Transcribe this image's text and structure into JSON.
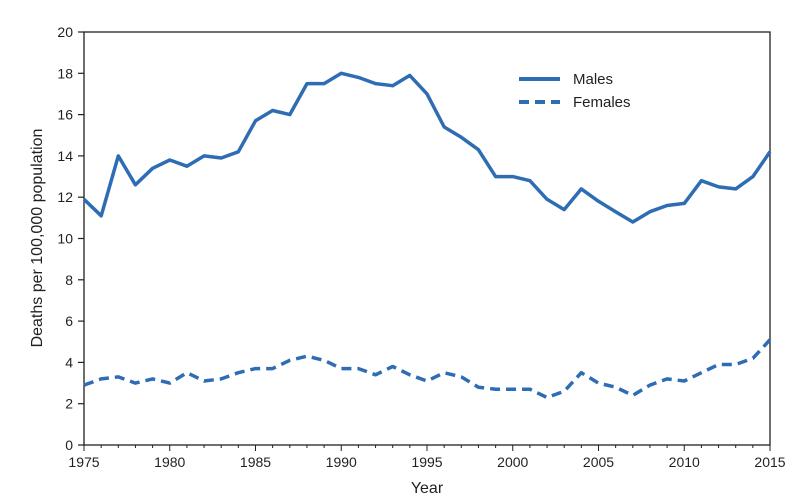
{
  "chart_data": {
    "type": "line",
    "title": "",
    "xlabel": "Year",
    "ylabel": "Deaths per 100,000 population",
    "xlim": [
      1975,
      2015
    ],
    "ylim": [
      0,
      20
    ],
    "x_ticks": [
      1975,
      1980,
      1985,
      1990,
      1995,
      2000,
      2005,
      2010,
      2015
    ],
    "y_ticks": [
      0,
      2,
      4,
      6,
      8,
      10,
      12,
      14,
      16,
      18,
      20
    ],
    "grid": false,
    "legend_position": "top-right",
    "line_color": "#2e6db4",
    "x": [
      1975,
      1976,
      1977,
      1978,
      1979,
      1980,
      1981,
      1982,
      1983,
      1984,
      1985,
      1986,
      1987,
      1988,
      1989,
      1990,
      1991,
      1992,
      1993,
      1994,
      1995,
      1996,
      1997,
      1998,
      1999,
      2000,
      2001,
      2002,
      2003,
      2004,
      2005,
      2006,
      2007,
      2008,
      2009,
      2010,
      2011,
      2012,
      2013,
      2014,
      2015
    ],
    "series": [
      {
        "name": "Males",
        "style": "solid",
        "values": [
          11.9,
          11.1,
          14.0,
          12.6,
          13.4,
          13.8,
          13.5,
          14.0,
          13.9,
          14.2,
          15.7,
          16.2,
          16.0,
          17.5,
          17.5,
          18.0,
          17.8,
          17.5,
          17.4,
          17.9,
          17.0,
          15.4,
          14.9,
          14.3,
          13.0,
          13.0,
          12.8,
          11.9,
          11.4,
          12.4,
          11.8,
          11.3,
          10.8,
          11.3,
          11.6,
          11.7,
          12.8,
          12.5,
          12.4,
          13.0,
          14.2
        ]
      },
      {
        "name": "Females",
        "style": "dashed",
        "values": [
          2.9,
          3.2,
          3.3,
          3.0,
          3.2,
          3.0,
          3.5,
          3.1,
          3.2,
          3.5,
          3.7,
          3.7,
          4.1,
          4.3,
          4.1,
          3.7,
          3.7,
          3.4,
          3.8,
          3.4,
          3.1,
          3.5,
          3.3,
          2.8,
          2.7,
          2.7,
          2.7,
          2.3,
          2.6,
          3.5,
          3.0,
          2.8,
          2.4,
          2.9,
          3.2,
          3.1,
          3.5,
          3.9,
          3.9,
          4.2,
          5.1
        ]
      }
    ]
  }
}
